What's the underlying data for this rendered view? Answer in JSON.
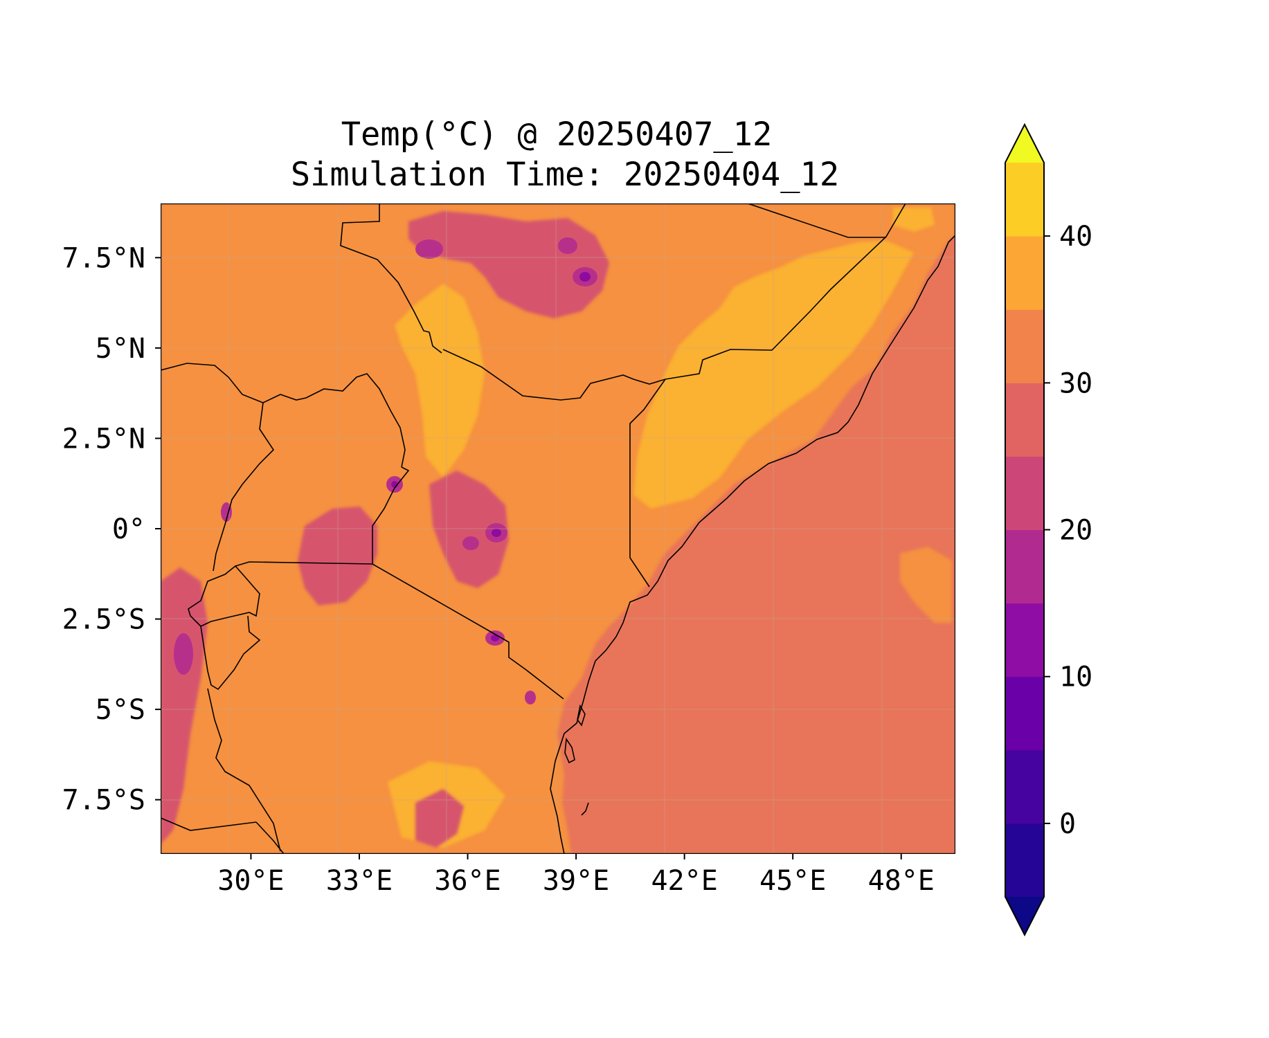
{
  "title": {
    "line1": "Temp(°C) @ 20250407_12",
    "line2": "Simulation Time: 20250404_12"
  },
  "map": {
    "variable": "Temperature",
    "units": "°C",
    "valid_time": "20250407_12",
    "simulation_time": "20250404_12",
    "lon_range": [
      27.5,
      49.5
    ],
    "lat_range": [
      -9.0,
      9.0
    ],
    "x_ticks": [
      {
        "value": 30,
        "label": "30°E"
      },
      {
        "value": 33,
        "label": "33°E"
      },
      {
        "value": 36,
        "label": "36°E"
      },
      {
        "value": 39,
        "label": "39°E"
      },
      {
        "value": 42,
        "label": "42°E"
      },
      {
        "value": 45,
        "label": "45°E"
      },
      {
        "value": 48,
        "label": "48°E"
      }
    ],
    "y_ticks": [
      {
        "value": 7.5,
        "label": "7.5°N"
      },
      {
        "value": 5,
        "label": "5°N"
      },
      {
        "value": 2.5,
        "label": "2.5°N"
      },
      {
        "value": 0,
        "label": "0°"
      },
      {
        "value": -2.5,
        "label": "2.5°S"
      },
      {
        "value": -5,
        "label": "5°S"
      },
      {
        "value": -7.5,
        "label": "7.5°S"
      }
    ],
    "colors": {
      "ocean": "#e87559",
      "land_warm": "#f59140",
      "land_hot": "#fbb130",
      "highland": "#d6556d",
      "mountain": "#b6308b",
      "peak": "#8e0ba0",
      "border": "#000000",
      "grid": "#c9a39a"
    }
  },
  "colorbar": {
    "levels": [
      -5,
      0,
      5,
      10,
      15,
      20,
      25,
      30,
      35,
      40,
      45
    ],
    "colors": [
      "#250596",
      "#47039f",
      "#6a00a8",
      "#8f0da4",
      "#b12a90",
      "#cc4778",
      "#e16462",
      "#f2844b",
      "#fca636",
      "#fcce25"
    ],
    "under_color": "#0d0887",
    "over_color": "#f0f921",
    "ticks": [
      {
        "value": 0,
        "label": "0"
      },
      {
        "value": 10,
        "label": "10"
      },
      {
        "value": 20,
        "label": "20"
      },
      {
        "value": 30,
        "label": "30"
      },
      {
        "value": 40,
        "label": "40"
      }
    ]
  }
}
